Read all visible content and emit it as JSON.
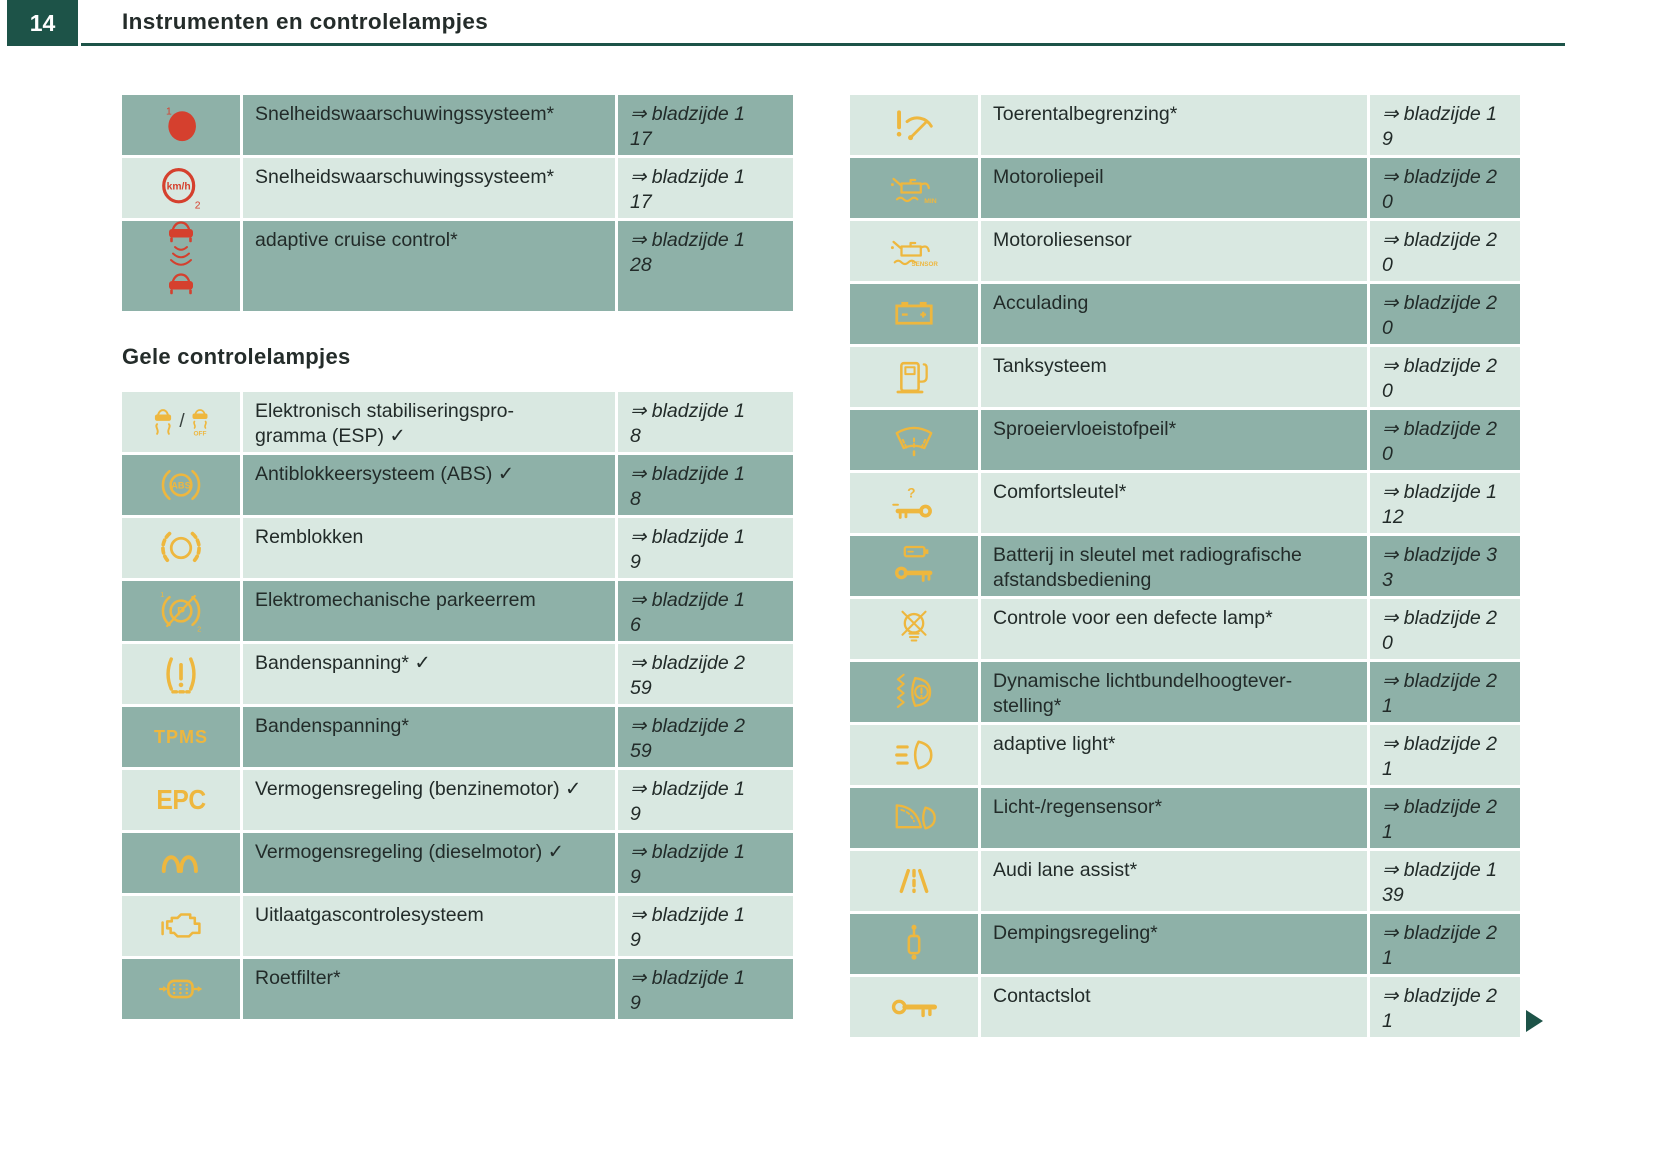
{
  "page": {
    "number": "14",
    "title": "Instrumenten en controlelampjes"
  },
  "section_heading": "Gele controlelampjes",
  "colors": {
    "header_teal": "#1d5348",
    "row_dark": "#8eb1a8",
    "row_light": "#d9e8e1",
    "icon_yellow": "#eeb73e",
    "icon_red": "#d5402e",
    "text": "#222b29"
  },
  "tables": [
    {
      "id": "red-lamps",
      "start_shade": "dark",
      "rows": [
        {
          "icon": "speed-warning-1",
          "desc": [
            "Snelheidswaarschuwingssysteem*"
          ],
          "ref": [
            "⇒ bladzijde 1",
            "17"
          ]
        },
        {
          "icon": "speed-warning-2",
          "desc": [
            "Snelheidswaarschuwingssysteem*"
          ],
          "ref": [
            "⇒ bladzijde 1",
            "17"
          ]
        },
        {
          "icon": "adaptive-cruise-control",
          "desc": [
            "adaptive cruise control*"
          ],
          "ref": [
            "⇒ bladzijde 1",
            "28"
          ],
          "tall": true
        }
      ]
    },
    {
      "id": "yellow-lamps",
      "start_shade": "light",
      "rows": [
        {
          "icon": "esp",
          "desc": [
            "Elektronisch stabiliseringspro-",
            "gramma (ESP) ✓"
          ],
          "ref": [
            "⇒ bladzijde 1",
            "8"
          ]
        },
        {
          "icon": "abs",
          "desc": [
            "Antiblokkeersysteem (ABS) ✓"
          ],
          "ref": [
            "⇒ bladzijde 1",
            "8"
          ]
        },
        {
          "icon": "brake-pads",
          "desc": [
            "Remblokken"
          ],
          "ref": [
            "⇒ bladzijde 1",
            "9"
          ]
        },
        {
          "icon": "parking-brake",
          "desc": [
            "Elektromechanische parkeerrem"
          ],
          "ref": [
            "⇒ bladzijde 1",
            "6"
          ]
        },
        {
          "icon": "tyre-pressure",
          "desc": [
            "Bandenspanning* ✓"
          ],
          "ref": [
            "⇒ bladzijde 2",
            "59"
          ]
        },
        {
          "icon": "tpms",
          "desc": [
            "Bandenspanning*"
          ],
          "ref": [
            "⇒ bladzijde 2",
            "59"
          ]
        },
        {
          "icon": "epc",
          "desc": [
            "Vermogensregeling (benzinemotor) ✓"
          ],
          "ref": [
            "⇒ bladzijde 1",
            "9"
          ]
        },
        {
          "icon": "glow-plug",
          "desc": [
            "Vermogensregeling (dieselmotor) ✓"
          ],
          "ref": [
            "⇒ bladzijde 1",
            "9"
          ]
        },
        {
          "icon": "exhaust-control",
          "desc": [
            "Uitlaatgascontrolesysteem"
          ],
          "ref": [
            "⇒ bladzijde 1",
            "9"
          ]
        },
        {
          "icon": "particulate-filter",
          "desc": [
            "Roetfilter*"
          ],
          "ref": [
            "⇒ bladzijde 1",
            "9"
          ]
        }
      ]
    },
    {
      "id": "right-lamps",
      "start_shade": "light",
      "rows": [
        {
          "icon": "rev-limiter",
          "desc": [
            "Toerentalbegrenzing*"
          ],
          "ref": [
            "⇒ bladzijde 1",
            "9"
          ]
        },
        {
          "icon": "oil-level-min",
          "desc": [
            "Motoroliepeil"
          ],
          "ref": [
            "⇒ bladzijde 2",
            "0"
          ]
        },
        {
          "icon": "oil-sensor",
          "desc": [
            "Motoroliesensor"
          ],
          "ref": [
            "⇒ bladzijde 2",
            "0"
          ]
        },
        {
          "icon": "battery",
          "desc": [
            "Acculading"
          ],
          "ref": [
            "⇒ bladzijde 2",
            "0"
          ]
        },
        {
          "icon": "fuel-system",
          "desc": [
            "Tanksysteem"
          ],
          "ref": [
            "⇒ bladzijde 2",
            "0"
          ]
        },
        {
          "icon": "washer-fluid",
          "desc": [
            "Sproeiervloeistofpeil*"
          ],
          "ref": [
            "⇒ bladzijde 2",
            "0"
          ]
        },
        {
          "icon": "comfort-key",
          "desc": [
            "Comfortsleutel*"
          ],
          "ref": [
            "⇒ bladzijde 1",
            "12"
          ]
        },
        {
          "icon": "key-battery",
          "desc": [
            "Batterij in sleutel met radiografische",
            "afstandsbediening"
          ],
          "ref": [
            "⇒ bladzijde 3",
            "3"
          ]
        },
        {
          "icon": "defective-lamp",
          "desc": [
            "Controle voor een defecte lamp*"
          ],
          "ref": [
            "⇒ bladzijde 2",
            "0"
          ]
        },
        {
          "icon": "headlight-leveling",
          "desc": [
            "Dynamische lichtbundelhoogtever-",
            "stelling*"
          ],
          "ref": [
            "⇒ bladzijde 2",
            "1"
          ]
        },
        {
          "icon": "adaptive-light",
          "desc": [
            "adaptive light*"
          ],
          "ref": [
            "⇒ bladzijde 2",
            "1"
          ]
        },
        {
          "icon": "light-rain-sensor",
          "desc": [
            "Licht-/regensensor*"
          ],
          "ref": [
            "⇒ bladzijde 2",
            "1"
          ]
        },
        {
          "icon": "lane-assist",
          "desc": [
            "Audi lane assist*"
          ],
          "ref": [
            "⇒ bladzijde 1",
            "39"
          ]
        },
        {
          "icon": "damping-control",
          "desc": [
            "Dempingsregeling*"
          ],
          "ref": [
            "⇒ bladzijde 2",
            "1"
          ]
        },
        {
          "icon": "ignition-lock",
          "desc": [
            "Contactslot"
          ],
          "ref": [
            "⇒ bladzijde 2",
            "1"
          ]
        }
      ]
    }
  ]
}
